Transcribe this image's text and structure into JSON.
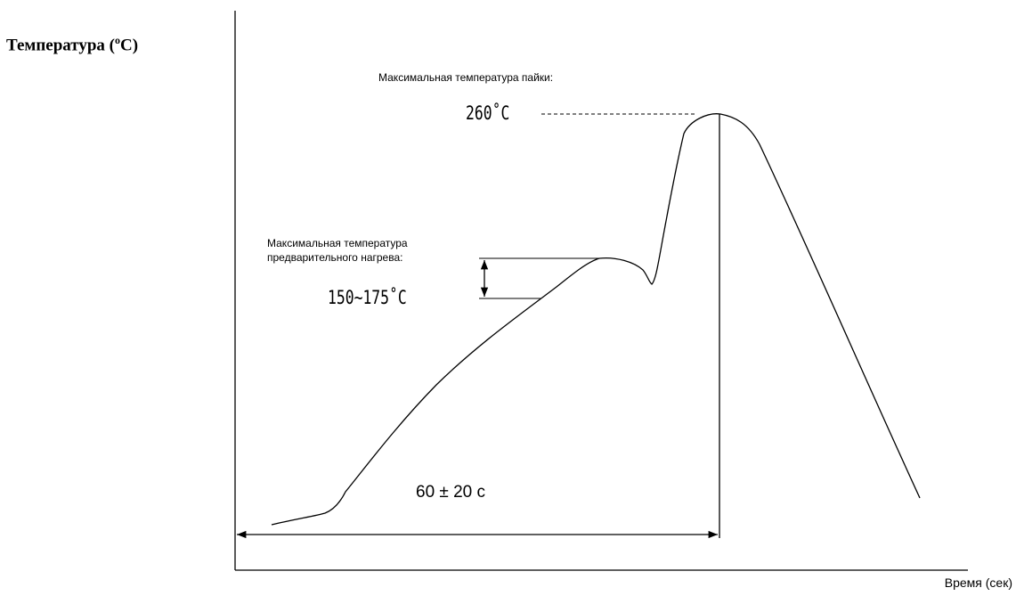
{
  "y_axis": {
    "label_prefix": "Температура (",
    "label_deg": "o",
    "label_suffix": "C)"
  },
  "x_axis": {
    "label": "Время (сек)"
  },
  "peak": {
    "caption": "Максимальная температура пайки:",
    "value": "260˚C"
  },
  "preheat": {
    "caption_line1": "Максимальная температура",
    "caption_line2": "предварительного нагрева:",
    "value": "150~175˚C"
  },
  "duration": {
    "label": "60 ± 20 c"
  }
}
